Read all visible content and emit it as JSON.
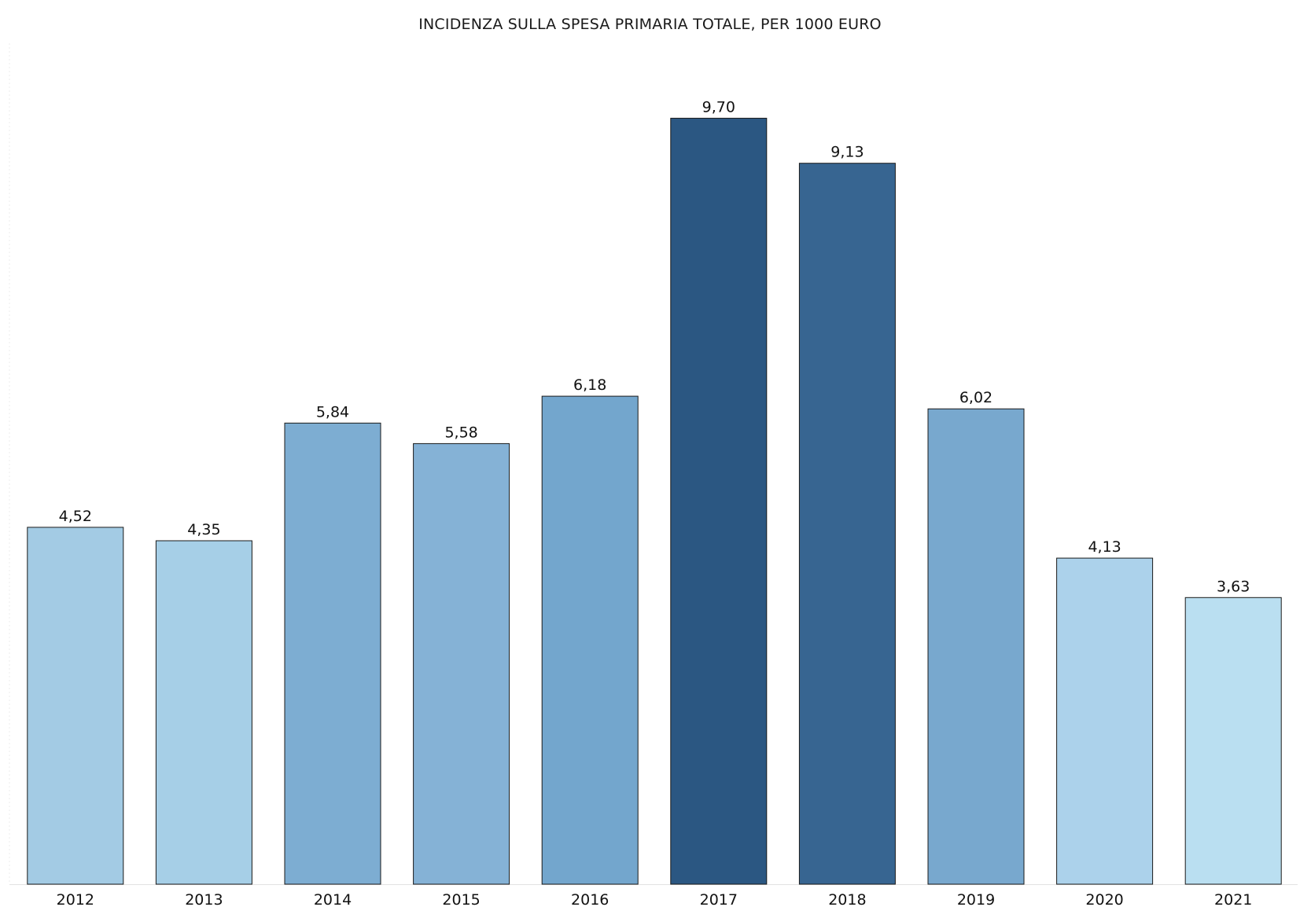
{
  "chart_data": {
    "type": "bar",
    "title": "INCIDENZA SULLA SPESA PRIMARIA TOTALE, PER 1000 EURO",
    "categories": [
      "2012",
      "2013",
      "2014",
      "2015",
      "2016",
      "2017",
      "2018",
      "2019",
      "2020",
      "2021"
    ],
    "values": [
      4.52,
      4.35,
      5.84,
      5.58,
      6.18,
      9.7,
      9.13,
      6.02,
      4.13,
      3.63
    ],
    "value_labels": [
      "4,52",
      "4,35",
      "5,84",
      "5,58",
      "6,18",
      "9,70",
      "9,13",
      "6,02",
      "4,13",
      "3,63"
    ],
    "colors": [
      "#a3cbe4",
      "#a6cfe7",
      "#7dadd2",
      "#85b2d6",
      "#73a6cd",
      "#2b5782",
      "#376591",
      "#78a8ce",
      "#acd2eb",
      "#badff1"
    ],
    "ylim": [
      0,
      10.65
    ],
    "grid": false,
    "legend": "none"
  }
}
